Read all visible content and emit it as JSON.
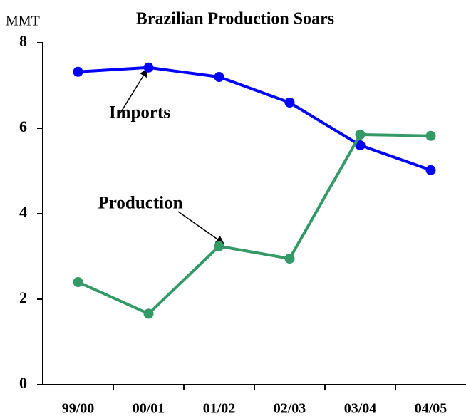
{
  "chart_data": {
    "type": "line",
    "title": "Brazilian Production Soars",
    "y_label": "MMT",
    "categories": [
      "99/00",
      "00/01",
      "01/02",
      "02/03",
      "03/04",
      "04/05"
    ],
    "series": [
      {
        "name": "Imports",
        "color": "#0000ff",
        "values": [
          7.32,
          7.42,
          7.2,
          6.6,
          5.6,
          5.02
        ]
      },
      {
        "name": "Production",
        "color": "#339966",
        "values": [
          2.4,
          1.66,
          3.24,
          2.95,
          5.85,
          5.82
        ]
      }
    ],
    "ylim": [
      0,
      8
    ],
    "yticks": [
      0,
      2,
      4,
      6,
      8
    ],
    "grid": false
  }
}
